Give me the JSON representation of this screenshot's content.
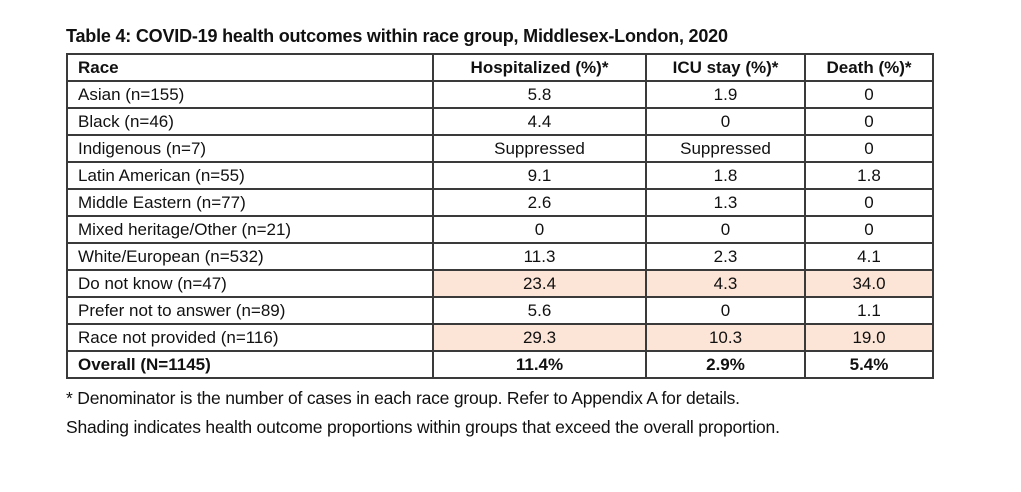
{
  "title": "Table 4: COVID-19 health outcomes within race group, Middlesex-London, 2020",
  "colors": {
    "shading": "#fce4d6",
    "border": "#3a3a3a",
    "text": "#111111",
    "background": "#ffffff"
  },
  "table": {
    "columns": [
      "Race",
      "Hospitalized (%)*",
      "ICU stay (%)*",
      "Death (%)*"
    ],
    "rows": [
      {
        "race": "Asian (n=155)",
        "values": [
          "5.8",
          "1.9",
          "0"
        ],
        "shaded": false,
        "bold": false
      },
      {
        "race": "Black (n=46)",
        "values": [
          "4.4",
          "0",
          "0"
        ],
        "shaded": false,
        "bold": false
      },
      {
        "race": "Indigenous (n=7)",
        "values": [
          "Suppressed",
          "Suppressed",
          "0"
        ],
        "shaded": false,
        "bold": false
      },
      {
        "race": "Latin American (n=55)",
        "values": [
          "9.1",
          "1.8",
          "1.8"
        ],
        "shaded": false,
        "bold": false
      },
      {
        "race": "Middle Eastern (n=77)",
        "values": [
          "2.6",
          "1.3",
          "0"
        ],
        "shaded": false,
        "bold": false
      },
      {
        "race": "Mixed heritage/Other (n=21)",
        "values": [
          "0",
          "0",
          "0"
        ],
        "shaded": false,
        "bold": false
      },
      {
        "race": "White/European (n=532)",
        "values": [
          "11.3",
          "2.3",
          "4.1"
        ],
        "shaded": false,
        "bold": false
      },
      {
        "race": "Do not know (n=47)",
        "values": [
          "23.4",
          "4.3",
          "34.0"
        ],
        "shaded": true,
        "bold": false
      },
      {
        "race": "Prefer not to answer (n=89)",
        "values": [
          "5.6",
          "0",
          "1.1"
        ],
        "shaded": false,
        "bold": false
      },
      {
        "race": "Race not provided (n=116)",
        "values": [
          "29.3",
          "10.3",
          "19.0"
        ],
        "shaded": true,
        "bold": false
      },
      {
        "race": "Overall (N=1145)",
        "values": [
          "11.4%",
          "2.9%",
          "5.4%"
        ],
        "shaded": false,
        "bold": true
      }
    ]
  },
  "footnotes": [
    "* Denominator is the number of cases in each race group. Refer to Appendix A for details.",
    "Shading indicates health outcome proportions within groups that exceed the overall proportion."
  ]
}
